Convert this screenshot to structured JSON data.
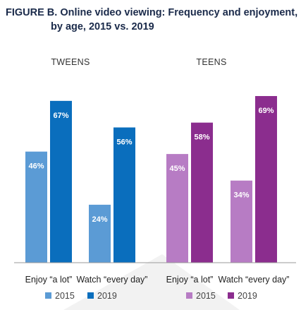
{
  "chart_data": {
    "type": "bar",
    "title_line1": "FIGURE B. Online video viewing: Frequency and enjoyment,",
    "title_line2": "by age, 2015 vs. 2019",
    "ylim": [
      0,
      100
    ],
    "groups": [
      {
        "name": "TWEENS",
        "categories": [
          "Enjoy “a lot”",
          "Watch “every day”"
        ],
        "series": [
          {
            "name": "2015",
            "color": "#5b9bd5",
            "values": [
              46,
              24
            ]
          },
          {
            "name": "2019",
            "color": "#0a6ebd",
            "values": [
              67,
              56
            ]
          }
        ]
      },
      {
        "name": "TEENS",
        "categories": [
          "Enjoy “a lot”",
          "Watch “every day”"
        ],
        "series": [
          {
            "name": "2015",
            "color": "#b77cc4",
            "values": [
              45,
              34
            ]
          },
          {
            "name": "2019",
            "color": "#8b2d8e",
            "values": [
              58,
              69
            ]
          }
        ]
      }
    ],
    "legend": [
      {
        "label": "2015",
        "color": "#5b9bd5"
      },
      {
        "label": "2019",
        "color": "#0a6ebd"
      },
      {
        "label": "2015",
        "color": "#b77cc4"
      },
      {
        "label": "2019",
        "color": "#8b2d8e"
      }
    ],
    "value_suffix": "%"
  }
}
